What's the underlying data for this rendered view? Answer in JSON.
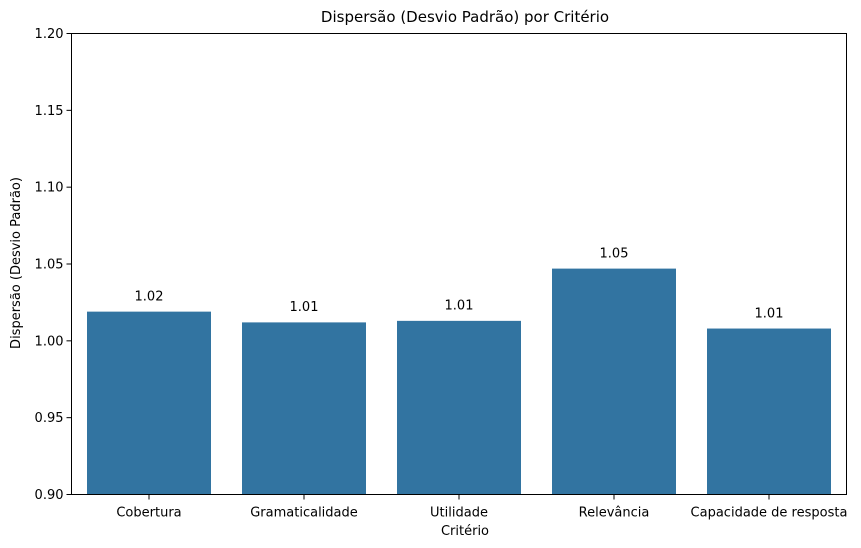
{
  "chart_data": {
    "type": "bar",
    "title": "Dispersão (Desvio Padrão) por Critério",
    "xlabel": "Critério",
    "ylabel": "Dispersão (Desvio Padrão)",
    "categories": [
      "Cobertura",
      "Gramaticalidade",
      "Utilidade",
      "Relevância",
      "Capacidade de resposta"
    ],
    "values": [
      1.019,
      1.012,
      1.013,
      1.047,
      1.008
    ],
    "value_labels": [
      "1.02",
      "1.01",
      "1.01",
      "1.05",
      "1.01"
    ],
    "ylim": [
      0.9,
      1.2
    ],
    "yticks": [
      "0.90",
      "0.95",
      "1.00",
      "1.05",
      "1.10",
      "1.15",
      "1.20"
    ],
    "grid": false,
    "bar_color": "#3274a1"
  }
}
